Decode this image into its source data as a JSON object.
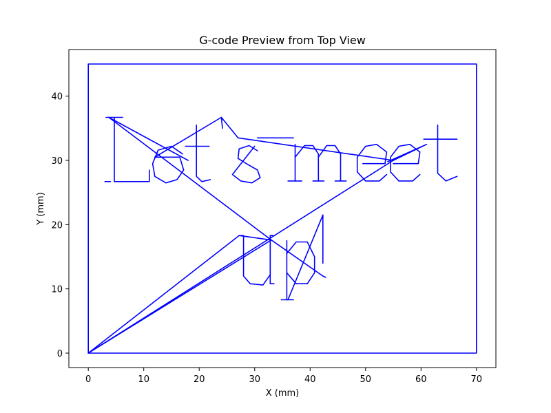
{
  "chart_data": {
    "type": "line",
    "title": "G-code Preview from Top View",
    "xlabel": "X (mm)",
    "ylabel": "Y (mm)",
    "xlim": [
      -3.5,
      73.5
    ],
    "ylim": [
      -2.25,
      47.25
    ],
    "xticks": [
      0,
      10,
      20,
      30,
      40,
      50,
      60,
      70
    ],
    "yticks": [
      0,
      10,
      20,
      30,
      40
    ],
    "grid": false,
    "line_color": "#0000ff",
    "series": [
      {
        "segments": [
          [
            [
              0,
              0
            ],
            [
              0,
              45
            ],
            [
              70,
              45
            ],
            [
              70,
              0
            ],
            [
              0,
              0
            ]
          ],
          [
            [
              0,
              0
            ],
            [
              27.2,
              18.3
            ],
            [
              33.0,
              17.6
            ],
            [
              0,
              0
            ]
          ],
          [
            [
              0,
              0
            ],
            [
              55,
              30
            ],
            [
              61,
              32.5
            ],
            [
              54,
              29.8
            ]
          ],
          [
            [
              3.2,
              36.7
            ],
            [
              6.2,
              36.7
            ]
          ],
          [
            [
              4.7,
              36.7
            ],
            [
              4.7,
              26.7
            ]
          ],
          [
            [
              4.7,
              26.7
            ],
            [
              11.0,
              26.7
            ],
            [
              11.0,
              28.5
            ]
          ],
          [
            [
              3.0,
              26.7
            ],
            [
              4.0,
              26.7
            ]
          ],
          [
            [
              3.7,
              36.7
            ],
            [
              18.0,
              30.0
            ]
          ],
          [
            [
              3.7,
              36.7
            ],
            [
              33.0,
              17.6
            ]
          ],
          [
            [
              12.0,
              30.5
            ],
            [
              16.5,
              30.5
            ],
            [
              17.2,
              28.5
            ],
            [
              16.0,
              27.0
            ],
            [
              14.0,
              26.5
            ],
            [
              12.0,
              27.5
            ],
            [
              11.6,
              29.5
            ],
            [
              12.6,
              31.6
            ],
            [
              15.0,
              32.2
            ],
            [
              17.0,
              31.0
            ]
          ],
          [
            [
              12.0,
              30.5
            ],
            [
              24.0,
              36.7
            ],
            [
              27.0,
              33.5
            ],
            [
              55.0,
              30.0
            ]
          ],
          [
            [
              19.5,
              35.5
            ],
            [
              19.5,
              27.5
            ],
            [
              20.5,
              26.7
            ],
            [
              22.0,
              27.0
            ]
          ],
          [
            [
              17.5,
              32.2
            ],
            [
              21.8,
              32.2
            ]
          ],
          [
            [
              24.0,
              36.7
            ],
            [
              24.2,
              35.0
            ]
          ],
          [
            [
              30.5,
              31.5
            ],
            [
              29.0,
              32.3
            ],
            [
              27.2,
              31.8
            ],
            [
              27.0,
              30.3
            ],
            [
              28.5,
              29.5
            ],
            [
              30.5,
              28.5
            ],
            [
              31.0,
              27.3
            ],
            [
              29.5,
              26.5
            ],
            [
              27.5,
              26.8
            ],
            [
              26.0,
              27.8
            ],
            [
              30.0,
              32.2
            ]
          ],
          [
            [
              30.5,
              33.5
            ],
            [
              37.0,
              33.5
            ]
          ],
          [
            [
              37.3,
              32.5
            ],
            [
              37.3,
              26.8
            ]
          ],
          [
            [
              36.0,
              26.8
            ],
            [
              38.5,
              26.8
            ]
          ],
          [
            [
              37.3,
              30.5
            ],
            [
              39.0,
              32.3
            ],
            [
              40.5,
              32.3
            ],
            [
              41.5,
              31.0
            ],
            [
              41.5,
              26.8
            ]
          ],
          [
            [
              40.5,
              26.8
            ],
            [
              42.5,
              26.8
            ]
          ],
          [
            [
              41.5,
              30.5
            ],
            [
              43.0,
              32.3
            ],
            [
              44.5,
              32.3
            ],
            [
              45.5,
              31.0
            ],
            [
              45.5,
              26.8
            ]
          ],
          [
            [
              44.5,
              26.8
            ],
            [
              46.5,
              26.8
            ]
          ],
          [
            [
              49.5,
              29.5
            ],
            [
              53.5,
              29.5
            ],
            [
              53.8,
              31.3
            ],
            [
              52.0,
              32.5
            ],
            [
              50.0,
              32.2
            ],
            [
              48.5,
              30.5
            ],
            [
              48.5,
              28.2
            ],
            [
              50.0,
              26.8
            ],
            [
              52.5,
              26.8
            ],
            [
              53.8,
              27.8
            ]
          ],
          [
            [
              55.0,
              29.5
            ],
            [
              59.5,
              29.5
            ],
            [
              59.8,
              31.3
            ],
            [
              58.0,
              32.5
            ],
            [
              56.0,
              32.2
            ],
            [
              54.5,
              30.5
            ],
            [
              54.5,
              28.2
            ],
            [
              56.0,
              26.8
            ],
            [
              58.5,
              26.8
            ],
            [
              59.8,
              27.8
            ]
          ],
          [
            [
              63.0,
              35.5
            ],
            [
              63.0,
              28.0
            ],
            [
              64.5,
              26.8
            ],
            [
              66.5,
              27.5
            ]
          ],
          [
            [
              60.5,
              33.3
            ],
            [
              66.5,
              33.3
            ]
          ],
          [
            [
              27.2,
              18.3
            ],
            [
              28.0,
              18.3
            ],
            [
              28.0,
              12.0
            ],
            [
              29.2,
              10.8
            ],
            [
              31.5,
              10.6
            ],
            [
              32.8,
              12.2
            ],
            [
              32.8,
              18.3
            ]
          ],
          [
            [
              32.8,
              18.3
            ],
            [
              32.8,
              10.8
            ],
            [
              33.5,
              10.8
            ]
          ],
          [
            [
              32.8,
              18.3
            ],
            [
              33.3,
              18.3
            ]
          ],
          [
            [
              35.8,
              17.5
            ],
            [
              35.8,
              8.3
            ]
          ],
          [
            [
              34.8,
              8.3
            ],
            [
              37.0,
              8.3
            ]
          ],
          [
            [
              35.8,
              15.5
            ],
            [
              37.5,
              17.3
            ],
            [
              39.5,
              17.3
            ],
            [
              40.8,
              15.0
            ],
            [
              40.8,
              12.5
            ],
            [
              39.5,
              10.8
            ],
            [
              37.5,
              10.8
            ],
            [
              35.8,
              12.5
            ]
          ],
          [
            [
              36.0,
              8.3
            ],
            [
              42.3,
              21.5
            ]
          ],
          [
            [
              42.3,
              21.5
            ],
            [
              42.3,
              14.0
            ]
          ],
          [
            [
              42.3,
              12.0
            ],
            [
              42.8,
              11.8
            ]
          ],
          [
            [
              33.0,
              17.6
            ],
            [
              42.3,
              12.0
            ]
          ]
        ]
      }
    ]
  }
}
